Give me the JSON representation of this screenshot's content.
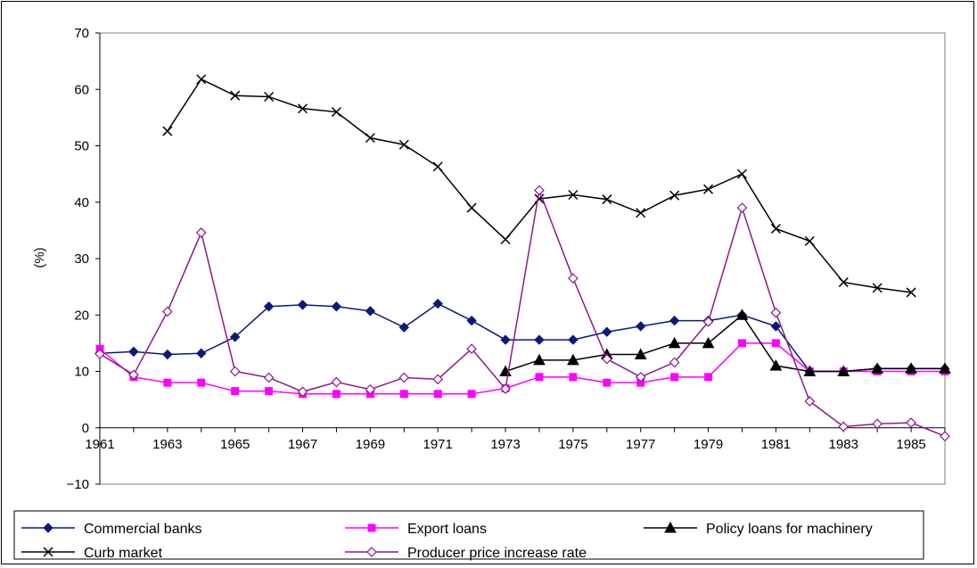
{
  "chart_data": {
    "type": "line",
    "title": "",
    "xlabel": "",
    "ylabel": "(%)",
    "ylim": [
      -10,
      70
    ],
    "yticks": [
      -10,
      0,
      10,
      20,
      30,
      40,
      50,
      60,
      70
    ],
    "xlim": [
      1961,
      1986
    ],
    "x_tick_labels": [
      "1961",
      "1963",
      "1965",
      "1967",
      "1969",
      "1971",
      "1973",
      "1975",
      "1977",
      "1979",
      "1981",
      "1983",
      "1985"
    ],
    "grid": false,
    "legend": "bottom",
    "series": [
      {
        "name": "Commercial banks",
        "color": "#0b1a7a",
        "marker": "diamond-filled",
        "x": [
          1961,
          1962,
          1963,
          1964,
          1965,
          1966,
          1967,
          1968,
          1969,
          1970,
          1971,
          1972,
          1973,
          1974,
          1975,
          1976,
          1977,
          1978,
          1979,
          1980,
          1981,
          1982,
          1983,
          1984,
          1985,
          1986
        ],
        "values": [
          13.2,
          13.5,
          13.0,
          13.2,
          16.1,
          21.5,
          21.8,
          21.5,
          20.7,
          17.8,
          22.0,
          19.0,
          15.6,
          15.6,
          15.6,
          17.0,
          18.0,
          19.0,
          19.0,
          20.0,
          18.0,
          10.0,
          10.0,
          10.5,
          10.5,
          10.5
        ]
      },
      {
        "name": "Export loans",
        "color": "#ff00ff",
        "marker": "square",
        "x": [
          1961,
          1962,
          1963,
          1964,
          1965,
          1966,
          1967,
          1968,
          1969,
          1970,
          1971,
          1972,
          1973,
          1974,
          1975,
          1976,
          1977,
          1978,
          1979,
          1980,
          1981,
          1982,
          1983,
          1984,
          1985,
          1986
        ],
        "values": [
          14.0,
          9.0,
          8.0,
          8.0,
          6.5,
          6.5,
          6.0,
          6.0,
          6.0,
          6.0,
          6.0,
          6.0,
          7.0,
          9.0,
          9.0,
          8.0,
          8.0,
          9.0,
          9.0,
          15.0,
          15.0,
          10.0,
          10.0,
          10.0,
          10.0,
          10.0
        ]
      },
      {
        "name": "Policy loans for machinery",
        "color": "#000000",
        "marker": "triangle",
        "x": [
          1973,
          1974,
          1975,
          1976,
          1977,
          1978,
          1979,
          1980,
          1981,
          1982,
          1983,
          1984,
          1985,
          1986
        ],
        "values": [
          10.0,
          12.0,
          12.0,
          13.0,
          13.0,
          15.0,
          15.0,
          20.0,
          11.0,
          10.0,
          10.0,
          10.5,
          10.5,
          10.5
        ]
      },
      {
        "name": "Curb market",
        "color": "#000000",
        "marker": "x",
        "x": [
          1963,
          1964,
          1965,
          1966,
          1967,
          1968,
          1969,
          1970,
          1971,
          1972,
          1973,
          1974,
          1975,
          1976,
          1977,
          1978,
          1979,
          1980,
          1981,
          1982,
          1983,
          1984,
          1985
        ],
        "values": [
          52.6,
          61.8,
          58.9,
          58.7,
          56.6,
          56.0,
          51.4,
          50.2,
          46.3,
          39.0,
          33.4,
          40.6,
          41.3,
          40.5,
          38.1,
          41.2,
          42.3,
          45.0,
          35.3,
          33.1,
          25.8,
          24.8,
          24.0
        ]
      },
      {
        "name": "Producer price increase rate",
        "color": "#8b1a8b",
        "marker": "diamond-open",
        "x": [
          1961,
          1962,
          1963,
          1964,
          1965,
          1966,
          1967,
          1968,
          1969,
          1970,
          1971,
          1972,
          1973,
          1974,
          1975,
          1976,
          1977,
          1978,
          1979,
          1980,
          1981,
          1982,
          1983,
          1984,
          1985,
          1986
        ],
        "values": [
          13.1,
          9.4,
          20.6,
          34.6,
          10.0,
          8.9,
          6.4,
          8.1,
          6.8,
          8.9,
          8.6,
          14.0,
          6.9,
          42.1,
          26.5,
          12.2,
          9.0,
          11.6,
          18.8,
          39.0,
          20.4,
          4.7,
          0.2,
          0.7,
          0.9,
          -1.5
        ]
      }
    ]
  }
}
